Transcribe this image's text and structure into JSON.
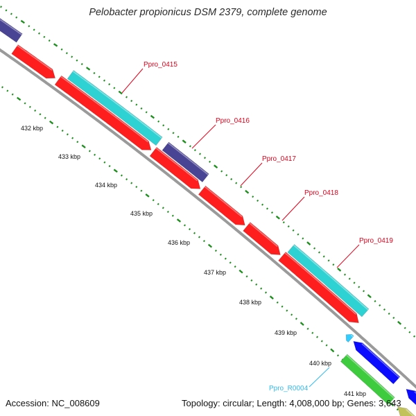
{
  "title": "Pelobacter propionicus DSM 2379, complete genome",
  "footer": {
    "accession": "Accession: NC_008609",
    "topology": "Topology: circular; Length: 4,008,000 bp; Genes: 3,643"
  },
  "ticks": [
    "432 kbp",
    "433 kbp",
    "434 kbp",
    "435 kbp",
    "436 kbp",
    "437 kbp",
    "438 kbp",
    "439 kbp",
    "440 kbp",
    "441 kbp"
  ],
  "gene_labels": [
    {
      "name": "Ppro_0415",
      "color": "#e0001a"
    },
    {
      "name": "Ppro_0416",
      "color": "#e0001a"
    },
    {
      "name": "Ppro_0417",
      "color": "#e0001a"
    },
    {
      "name": "Ppro_0418",
      "color": "#e0001a"
    },
    {
      "name": "Ppro_0419",
      "color": "#e0001a"
    },
    {
      "name": "Ppro_R0004",
      "color": "#33bbee"
    }
  ],
  "colors": {
    "backbone": "#9a9a9a",
    "red_feature": "#ff1e1e",
    "cyan_feature": "#2fd2d2",
    "purple_feature": "#4a4494",
    "blue_feature": "#0b0bff",
    "green_feature": "#3ecb3e",
    "olive_feature": "#c2c25a",
    "rna_feature": "#33ccff",
    "tick_dots": "#1e8f1e"
  }
}
